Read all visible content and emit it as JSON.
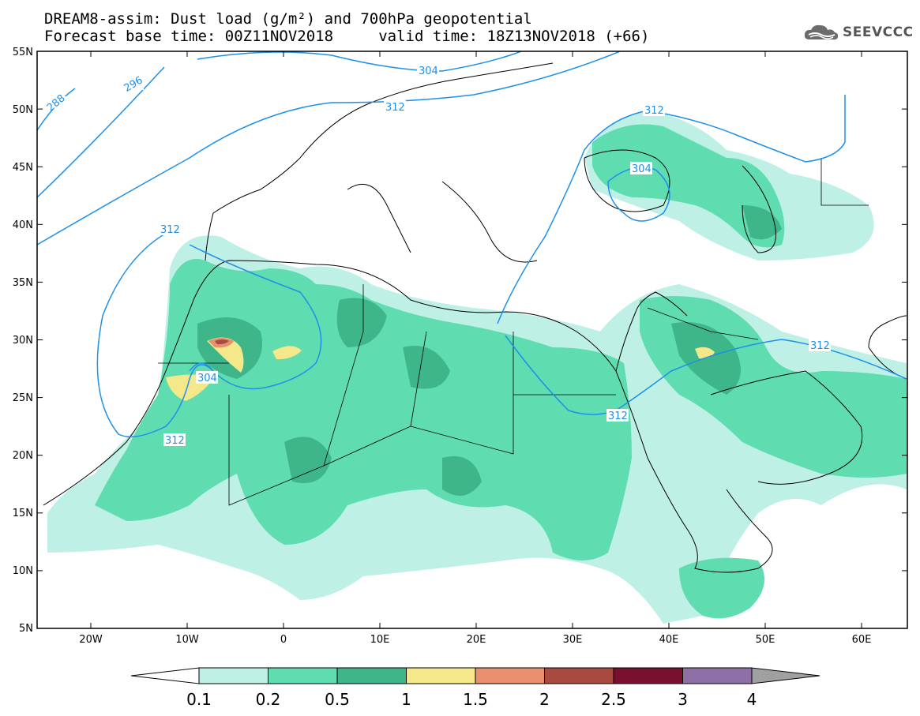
{
  "header": {
    "line1": "DREAM8-assim: Dust load (g/m²) and 700hPa geopotential",
    "line2": "Forecast base time: 00Z11NOV2018     valid time: 18Z13NOV2018 (+66)"
  },
  "logo": {
    "text": "SEEVCCC",
    "icon": "cloud-icon"
  },
  "map": {
    "lat_labels": [
      "55N",
      "50N",
      "45N",
      "40N",
      "35N",
      "30N",
      "25N",
      "20N",
      "15N",
      "10N",
      "5N"
    ],
    "lon_labels": [
      "20W",
      "10W",
      "0",
      "10E",
      "20E",
      "30E",
      "40E",
      "50E",
      "60E"
    ],
    "contour_labels": [
      "288",
      "296",
      "304",
      "312",
      "312",
      "312",
      "312",
      "304",
      "304",
      "312"
    ]
  },
  "colorbar": {
    "ticks": [
      "0.1",
      "0.2",
      "0.5",
      "1",
      "1.5",
      "2",
      "2.5",
      "3",
      "4"
    ],
    "colors": [
      "#bff0e6",
      "#5fddb0",
      "#3fb58a",
      "#f4e88a",
      "#e89070",
      "#a84a3f",
      "#7a1030",
      "#8e6fa6"
    ]
  }
}
